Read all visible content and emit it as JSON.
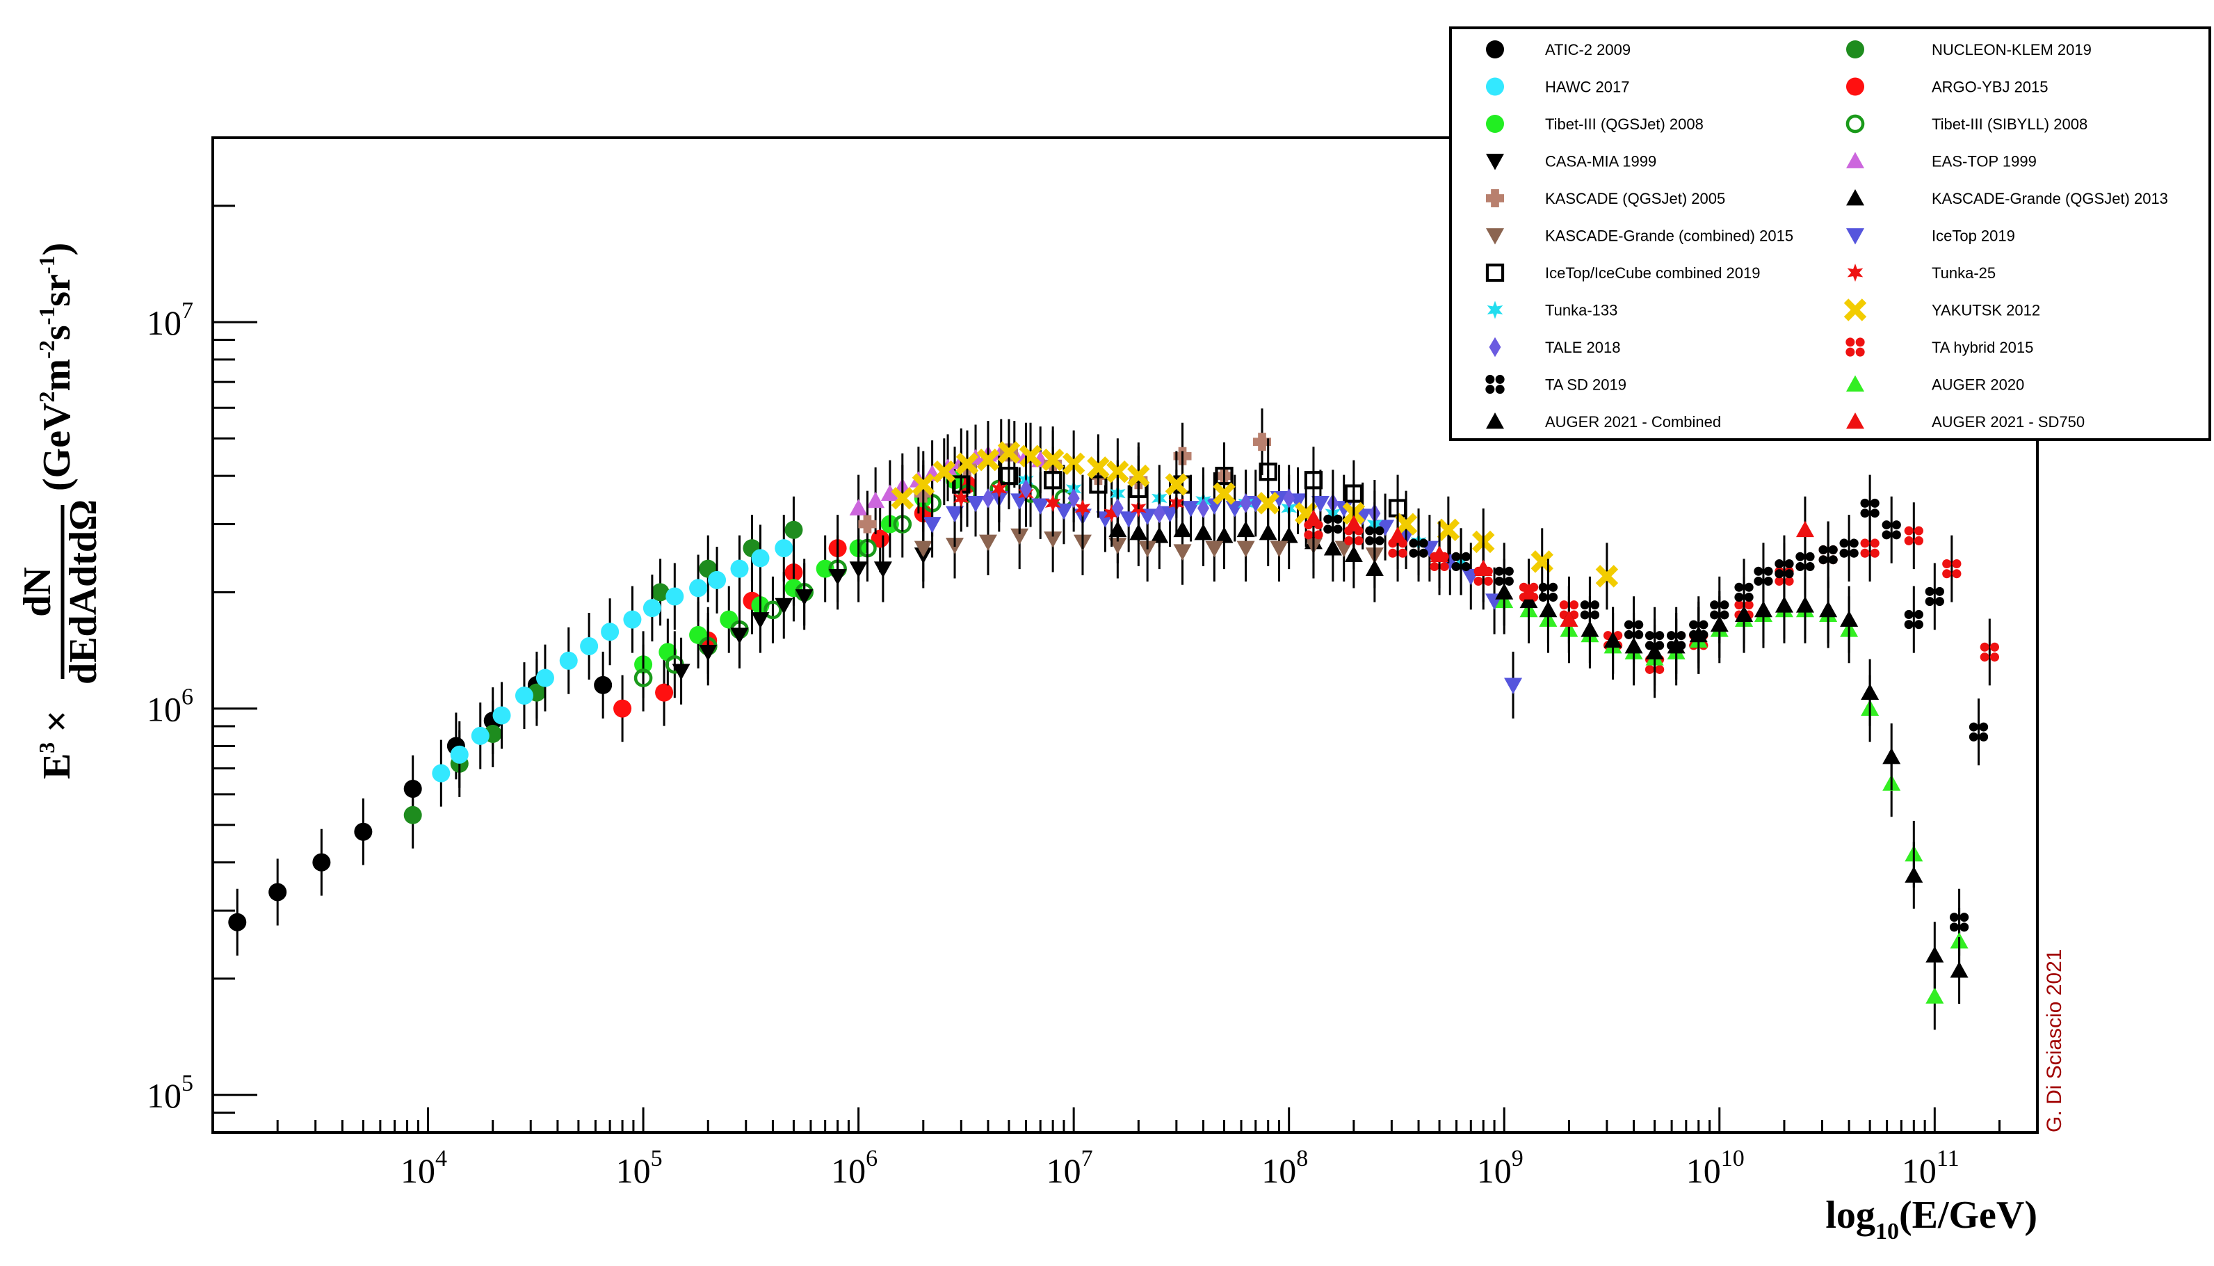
{
  "chart_data": {
    "type": "scatter",
    "title": "",
    "xlabel": "log10(E/GeV)",
    "ylabel": "E3 × dN/(dE dA dt dΩ) (GeV2 m-2 s-1 sr-1)",
    "xscale": "log",
    "yscale": "log",
    "xlim": [
      1000,
      300000000000
    ],
    "ylim": [
      80000,
      30000000
    ],
    "x_ticks": [
      {
        "value": 10000,
        "base": "10",
        "exp": "4"
      },
      {
        "value": 100000,
        "base": "10",
        "exp": "5"
      },
      {
        "value": 1000000,
        "base": "10",
        "exp": "6"
      },
      {
        "value": 10000000,
        "base": "10",
        "exp": "7"
      },
      {
        "value": 100000000,
        "base": "10",
        "exp": "8"
      },
      {
        "value": 1000000000,
        "base": "10",
        "exp": "9"
      },
      {
        "value": 10000000000,
        "base": "10",
        "exp": "10"
      },
      {
        "value": 100000000000,
        "base": "10",
        "exp": "11"
      }
    ],
    "y_ticks": [
      {
        "value": 100000,
        "base": "10",
        "exp": "5"
      },
      {
        "value": 1000000,
        "base": "10",
        "exp": "6"
      },
      {
        "value": 10000000,
        "base": "10",
        "exp": "7"
      }
    ],
    "credit": "G. Di Sciascio 2021",
    "legend_position": "top-right",
    "series": [
      {
        "name": "ATIC-2 2009",
        "color": "#000000",
        "marker": "circle",
        "x": [
          1300.0,
          2000.0,
          3200.0,
          5000.0,
          8500.0,
          13500.0,
          20000.0,
          32000.0,
          65000.0
        ],
        "y": [
          280000.0,
          335000.0,
          400000.0,
          480000.0,
          620000.0,
          800000.0,
          930000.0,
          1150000.0,
          1150000.0
        ]
      },
      {
        "name": "NUCLEON-KLEM 2019",
        "color": "#1e8c1e",
        "marker": "circle",
        "x": [
          8500.0,
          14000.0,
          20000.0,
          32000.0,
          120000.0,
          200000.0,
          320000.0,
          500000.0
        ],
        "y": [
          530000.0,
          720000.0,
          860000.0,
          1100000.0,
          2000000.0,
          2300000.0,
          2600000.0,
          2900000.0
        ]
      },
      {
        "name": "HAWC 2017",
        "color": "#33e8ff",
        "marker": "circle",
        "x": [
          11500.0,
          14000.0,
          17500.0,
          22000.0,
          28000.0,
          35000.0,
          45000.0,
          56000.0,
          70000.0,
          89000.0,
          110000.0,
          140000.0,
          180000.0,
          220000.0,
          280000.0,
          350000.0,
          450000.0
        ],
        "y": [
          680000.0,
          760000.0,
          850000.0,
          960000.0,
          1080000.0,
          1200000.0,
          1330000.0,
          1450000.0,
          1580000.0,
          1700000.0,
          1820000.0,
          1950000.0,
          2050000.0,
          2150000.0,
          2300000.0,
          2450000.0,
          2600000.0
        ]
      },
      {
        "name": "ARGO-YBJ 2015",
        "color": "#ff1010",
        "marker": "circle",
        "x": [
          80000.0,
          125000.0,
          200000.0,
          320000.0,
          500000.0,
          800000.0,
          1260000.0,
          2000000.0,
          3200000.0
        ],
        "y": [
          1000000.0,
          1100000.0,
          1500000.0,
          1900000.0,
          2250000.0,
          2600000.0,
          2750000.0,
          3200000.0,
          3800000.0
        ]
      },
      {
        "name": "Tibet-III (QGSJet) 2008",
        "color": "#22ee22",
        "marker": "circle",
        "x": [
          100000.0,
          130000.0,
          180000.0,
          250000.0,
          350000.0,
          500000.0,
          700000.0,
          1000000.0,
          1400000.0,
          2000000.0,
          2800000.0
        ],
        "y": [
          1300000.0,
          1400000.0,
          1550000.0,
          1700000.0,
          1850000.0,
          2050000.0,
          2300000.0,
          2600000.0,
          3000000.0,
          3500000.0,
          3900000.0
        ]
      },
      {
        "name": "Tibet-III (SIBYLL) 2008",
        "color": "#1a9a1a",
        "marker": "circle-open",
        "x": [
          100000.0,
          140000.0,
          200000.0,
          280000.0,
          400000.0,
          560000.0,
          800000.0,
          1100000.0,
          1600000.0,
          2200000.0,
          3200000.0,
          4500000.0,
          6300000.0,
          9000000.0
        ],
        "y": [
          1200000.0,
          1300000.0,
          1450000.0,
          1600000.0,
          1800000.0,
          2000000.0,
          2300000.0,
          2600000.0,
          3000000.0,
          3400000.0,
          3600000.0,
          3700000.0,
          3600000.0,
          3500000.0
        ]
      },
      {
        "name": "CASA-MIA 1999",
        "color": "#000000",
        "marker": "triangle-down",
        "x": [
          150000.0,
          200000.0,
          280000.0,
          350000.0,
          450000.0,
          560000.0,
          800000.0,
          1000000.0,
          1300000.0,
          2000000.0
        ],
        "y": [
          1250000.0,
          1400000.0,
          1550000.0,
          1700000.0,
          1850000.0,
          1950000.0,
          2200000.0,
          2300000.0,
          2300000.0,
          2500000.0
        ]
      },
      {
        "name": "EAS-TOP 1999",
        "color": "#cc66dd",
        "marker": "triangle",
        "x": [
          1000000.0,
          1200000.0,
          1400000.0,
          1600000.0,
          1900000.0,
          2200000.0,
          2600000.0,
          3000000.0,
          3500000.0,
          4000000.0,
          4600000.0,
          5300000.0,
          6000000.0,
          7000000.0
        ],
        "y": [
          3300000.0,
          3450000.0,
          3600000.0,
          3750000.0,
          3900000.0,
          4050000.0,
          4200000.0,
          4350000.0,
          4450000.0,
          4550000.0,
          4600000.0,
          4550000.0,
          4500000.0,
          4400000.0
        ]
      },
      {
        "name": "KASCADE (QGSJet) 2005",
        "color": "#b8806e",
        "marker": "cross",
        "x": [
          1100000.0,
          2000000.0,
          3200000.0,
          5000000.0,
          8000000.0,
          13000000.0,
          20000000.0,
          32000000.0,
          50000000.0,
          75000000.0
        ],
        "y": [
          3000000.0,
          3600000.0,
          4200000.0,
          4600000.0,
          4300000.0,
          4000000.0,
          3900000.0,
          4500000.0,
          4000000.0,
          4900000.0
        ]
      },
      {
        "name": "KASCADE-Grande (QGSJet) 2013",
        "color": "#000000",
        "marker": "triangle",
        "x": [
          16000000.0,
          20000000.0,
          25000000.0,
          32000000.0,
          40000000.0,
          50000000.0,
          63000000.0,
          80000000.0,
          100000000.0,
          130000000.0,
          160000000.0,
          200000000.0,
          250000000.0
        ],
        "y": [
          2900000.0,
          2850000.0,
          2800000.0,
          2900000.0,
          2850000.0,
          2800000.0,
          2900000.0,
          2850000.0,
          2800000.0,
          2700000.0,
          2600000.0,
          2500000.0,
          2300000.0
        ]
      },
      {
        "name": "KASCADE-Grande (combined) 2015",
        "color": "#8b6450",
        "marker": "triangle-down",
        "x": [
          2000000.0,
          2800000.0,
          4000000.0,
          5600000.0,
          8000000.0,
          11000000.0,
          16000000.0,
          22000000.0,
          32000000.0,
          45000000.0,
          63000000.0,
          90000000.0,
          130000000.0,
          180000000.0,
          250000000.0
        ],
        "y": [
          2600000.0,
          2650000.0,
          2700000.0,
          2800000.0,
          2750000.0,
          2700000.0,
          2650000.0,
          2600000.0,
          2550000.0,
          2600000.0,
          2600000.0,
          2600000.0,
          2650000.0,
          2600000.0,
          2500000.0
        ]
      },
      {
        "name": "IceTop 2019",
        "color": "#5555dd",
        "marker": "triangle-down",
        "x": [
          2200000.0,
          2800000.0,
          3500000.0,
          4500000.0,
          5600000.0,
          7000000.0,
          9000000.0,
          11000000.0,
          14000000.0,
          18000000.0,
          22000000.0,
          28000000.0,
          35000000.0,
          45000000.0,
          56000000.0,
          70000000.0,
          90000000.0,
          110000000.0,
          140000000.0,
          180000000.0,
          220000000.0,
          280000000.0,
          350000000.0,
          450000000.0,
          560000000.0,
          700000000.0,
          900000000.0,
          1100000000.0
        ],
        "y": [
          3000000.0,
          3200000.0,
          3400000.0,
          3500000.0,
          3450000.0,
          3350000.0,
          3250000.0,
          3150000.0,
          3100000.0,
          3100000.0,
          3150000.0,
          3200000.0,
          3300000.0,
          3350000.0,
          3300000.0,
          3400000.0,
          3500000.0,
          3450000.0,
          3400000.0,
          3300000.0,
          3150000.0,
          2950000.0,
          2800000.0,
          2600000.0,
          2400000.0,
          2200000.0,
          1900000.0,
          1150000.0
        ]
      },
      {
        "name": "IceTop/IceCube combined 2019",
        "color": "#000000",
        "marker": "square-open",
        "x": [
          3000000.0,
          5000000.0,
          8000000.0,
          13000000.0,
          20000000.0,
          32000000.0,
          50000000.0,
          80000000.0,
          130000000.0,
          200000000.0,
          320000000.0
        ],
        "y": [
          3800000.0,
          4000000.0,
          3900000.0,
          3800000.0,
          3700000.0,
          3800000.0,
          4000000.0,
          4100000.0,
          3900000.0,
          3600000.0,
          3300000.0
        ]
      },
      {
        "name": "Tunka-25",
        "color": "#ee1111",
        "marker": "star",
        "x": [
          3000000.0,
          4500000.0,
          6000000.0,
          8000000.0,
          11000000.0,
          15000000.0,
          20000000.0,
          30000000.0
        ],
        "y": [
          3500000.0,
          3700000.0,
          3600000.0,
          3400000.0,
          3300000.0,
          3200000.0,
          3300000.0,
          3400000.0
        ]
      },
      {
        "name": "Tunka-133",
        "color": "#22ddee",
        "marker": "star",
        "x": [
          6000000.0,
          10000000.0,
          16000000.0,
          25000000.0,
          40000000.0,
          63000000.0,
          100000000.0,
          160000000.0,
          250000000.0,
          400000000.0,
          630000000.0
        ],
        "y": [
          3900000.0,
          3700000.0,
          3600000.0,
          3500000.0,
          3450000.0,
          3400000.0,
          3300000.0,
          3200000.0,
          3000000.0,
          2700000.0,
          2400000.0
        ]
      },
      {
        "name": "YAKUTSK 2012",
        "color": "#f2cc00",
        "marker": "x",
        "x": [
          1600000.0,
          2000000.0,
          2500000.0,
          3200000.0,
          4000000.0,
          5000000.0,
          6300000.0,
          8000000.0,
          10000000.0,
          13000000.0,
          16000000.0,
          20000000.0,
          30000000.0,
          50000000.0,
          80000000.0,
          120000000.0,
          200000000.0,
          350000000.0,
          550000000.0,
          800000000.0,
          1500000000.0,
          3000000000.0
        ],
        "y": [
          3500000.0,
          3800000.0,
          4100000.0,
          4300000.0,
          4400000.0,
          4600000.0,
          4500000.0,
          4400000.0,
          4300000.0,
          4200000.0,
          4100000.0,
          4000000.0,
          3800000.0,
          3600000.0,
          3400000.0,
          3200000.0,
          3200000.0,
          3000000.0,
          2900000.0,
          2700000.0,
          2400000.0,
          2200000.0
        ]
      },
      {
        "name": "TALE 2018",
        "color": "#6b5be0",
        "marker": "diamond",
        "x": [
          4000000.0,
          6000000.0,
          10000000.0,
          16000000.0,
          25000000.0,
          40000000.0,
          63000000.0,
          100000000.0,
          160000000.0,
          250000000.0
        ],
        "y": [
          3500000.0,
          3700000.0,
          3500000.0,
          3300000.0,
          3200000.0,
          3300000.0,
          3400000.0,
          3500000.0,
          3400000.0,
          3200000.0
        ]
      },
      {
        "name": "TA hybrid 2015",
        "color": "#ee1111",
        "marker": "xcross",
        "x": [
          130000000.0,
          200000000.0,
          320000000.0,
          500000000.0,
          800000000.0,
          1300000000.0,
          2000000000.0,
          3200000000.0,
          5000000000.0,
          8000000000.0,
          13000000000.0,
          20000000000.0,
          32000000000.0,
          50000000000.0,
          80000000000.0,
          120000000000.0,
          180000000000.0
        ],
        "y": [
          2900000.0,
          2800000.0,
          2600000.0,
          2400000.0,
          2200000.0,
          2000000.0,
          1800000.0,
          1500000.0,
          1300000.0,
          1500000.0,
          1800000.0,
          2200000.0,
          2500000.0,
          2600000.0,
          2800000.0,
          2300000.0,
          1400000.0
        ]
      },
      {
        "name": "TA SD 2019",
        "color": "#000000",
        "marker": "xcross",
        "x": [
          160000000.0,
          250000000.0,
          400000000.0,
          630000000.0,
          1000000000.0,
          1600000000.0,
          2500000000.0,
          4000000000.0,
          5000000000.0,
          6300000000.0,
          8000000000.0,
          10000000000.0,
          13000000000.0,
          16000000000.0,
          20000000000.0,
          25000000000.0,
          32000000000.0,
          40000000000.0,
          50000000000.0,
          63000000000.0,
          80000000000.0,
          100000000000.0,
          130000000000.0,
          160000000000.0
        ],
        "y": [
          3000000.0,
          2800000.0,
          2600000.0,
          2400000.0,
          2200000.0,
          2000000.0,
          1800000.0,
          1600000.0,
          1500000.0,
          1500000.0,
          1600000.0,
          1800000.0,
          2000000.0,
          2200000.0,
          2300000.0,
          2400000.0,
          2500000.0,
          2600000.0,
          3300000.0,
          2900000.0,
          1700000.0,
          1950000.0,
          280000.0,
          870000.0
        ]
      },
      {
        "name": "AUGER 2020",
        "color": "#33ee22",
        "marker": "triangle",
        "x": [
          1000000000.0,
          1300000000.0,
          1600000000.0,
          2000000000.0,
          2500000000.0,
          3200000000.0,
          4000000000.0,
          5000000000.0,
          6300000000.0,
          8000000000.0,
          10000000000.0,
          13000000000.0,
          16000000000.0,
          20000000000.0,
          25000000000.0,
          32000000000.0,
          40000000000.0,
          50000000000.0,
          63000000000.0,
          80000000000.0,
          100000000000.0,
          130000000000.0
        ],
        "y": [
          1900000.0,
          1800000.0,
          1700000.0,
          1600000.0,
          1550000.0,
          1450000.0,
          1400000.0,
          1350000.0,
          1400000.0,
          1500000.0,
          1600000.0,
          1700000.0,
          1750000.0,
          1800000.0,
          1800000.0,
          1750000.0,
          1600000.0,
          1000000.0,
          640000.0,
          420000.0,
          180000.0,
          250000.0
        ]
      },
      {
        "name": "AUGER 2021 - Combined",
        "color": "#000000",
        "marker": "triangle",
        "x": [
          1000000000.0,
          1300000000.0,
          1600000000.0,
          2000000000.0,
          2500000000.0,
          3200000000.0,
          4000000000.0,
          5000000000.0,
          6300000000.0,
          8000000000.0,
          10000000000.0,
          13000000000.0,
          16000000000.0,
          20000000000.0,
          25000000000.0,
          32000000000.0,
          40000000000.0,
          50000000000.0,
          63000000000.0,
          80000000000.0,
          100000000000.0,
          130000000000.0
        ],
        "y": [
          2000000.0,
          1900000.0,
          1800000.0,
          1700000.0,
          1600000.0,
          1500000.0,
          1450000.0,
          1400000.0,
          1450000.0,
          1550000.0,
          1650000.0,
          1750000.0,
          1800000.0,
          1850000.0,
          1850000.0,
          1800000.0,
          1700000.0,
          1100000.0,
          750000.0,
          370000.0,
          230000.0,
          210000.0
        ]
      },
      {
        "name": "AUGER 2021 - SD750",
        "color": "#ee1111",
        "marker": "triangle",
        "x": [
          130000000.0,
          200000000.0,
          320000000.0,
          500000000.0,
          800000000.0,
          1300000000.0,
          2000000000.0,
          25000000000.0
        ],
        "y": [
          3100000.0,
          3000000.0,
          2800000.0,
          2500000.0,
          2300000.0,
          2000000.0,
          1700000.0,
          2900000.0
        ]
      }
    ]
  }
}
